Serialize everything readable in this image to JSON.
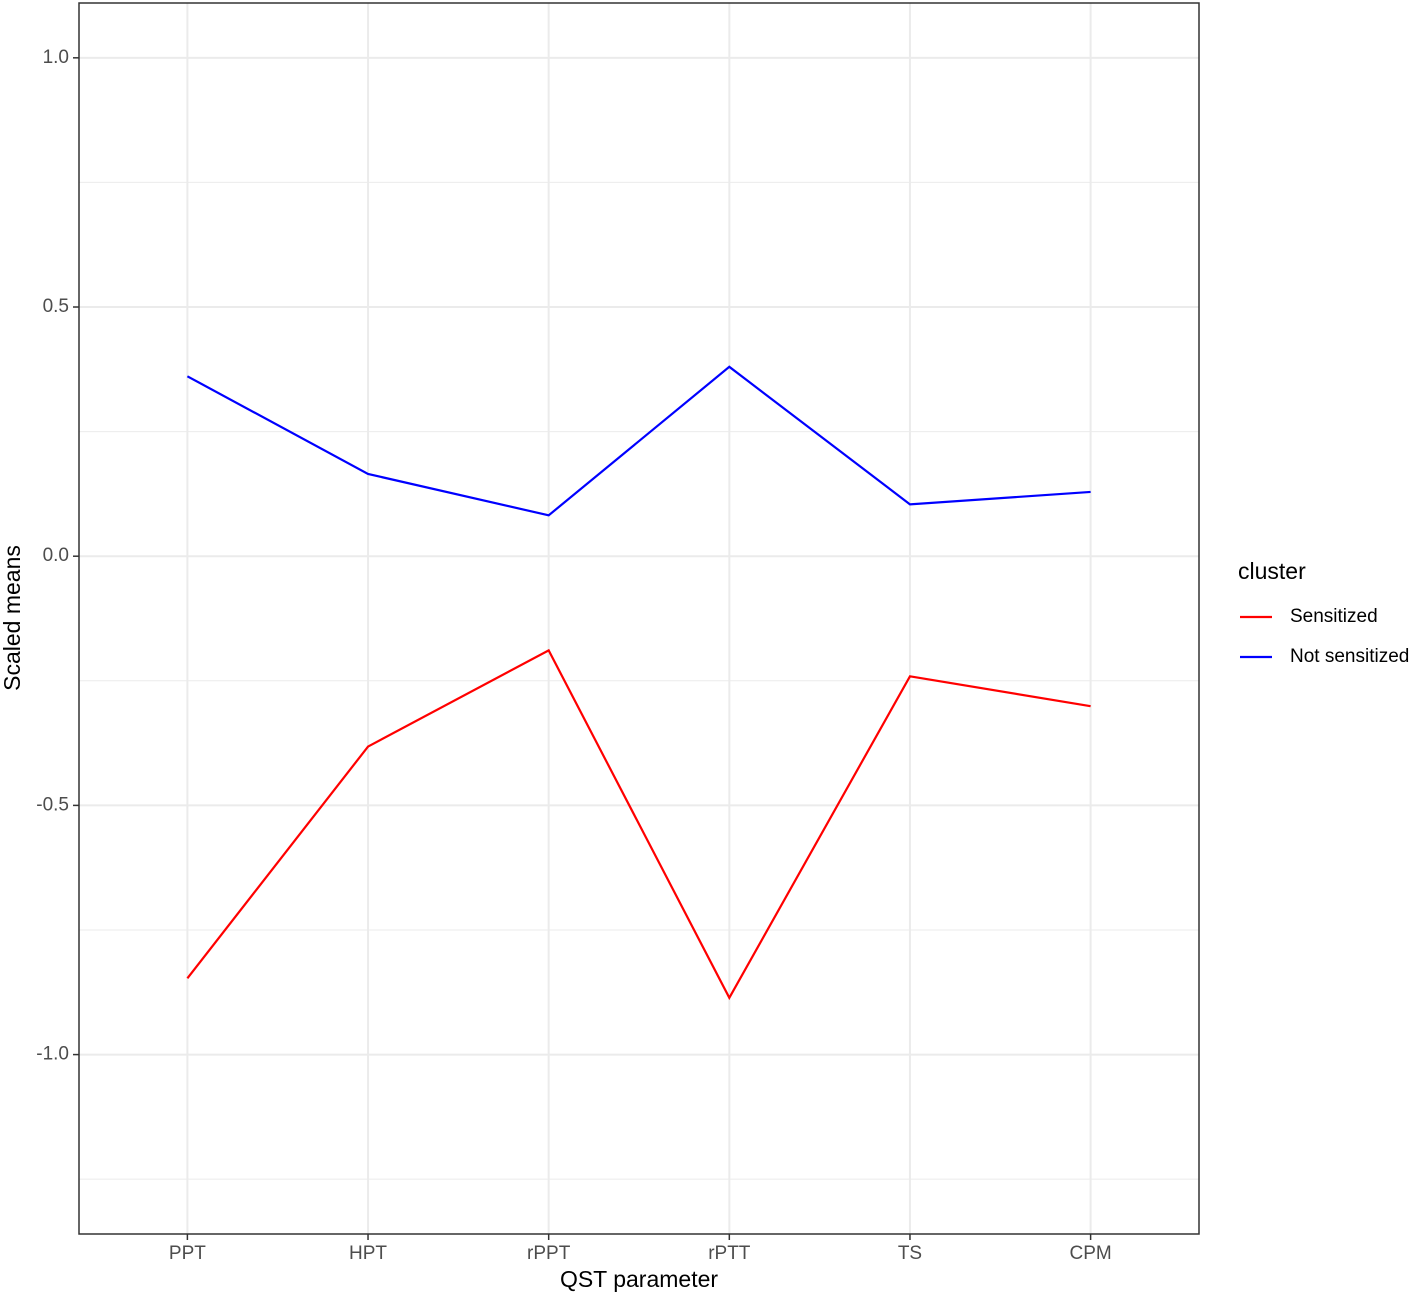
{
  "chart_data": {
    "type": "line",
    "x_label": "QST parameter",
    "y_label": "Scaled means",
    "categories": [
      "PPT",
      "HPT",
      "rPPT",
      "rPTT",
      "TS",
      "CPM"
    ],
    "series": [
      {
        "name": "Sensitized",
        "color": "#ff0000",
        "values": [
          -0.847,
          -0.382,
          -0.189,
          -0.886,
          -0.241,
          -0.301
        ]
      },
      {
        "name": "Not sensitized",
        "color": "#0000ff",
        "values": [
          0.361,
          0.165,
          0.082,
          0.38,
          0.104,
          0.129
        ]
      }
    ],
    "ylim": [
      -1.36,
      1.11
    ],
    "yticks": [
      {
        "value": -1,
        "label": "-1.0"
      },
      -0.5,
      {
        "value": 0,
        "label": "0.0"
      },
      0.5,
      {
        "value": 1,
        "label": "1.0"
      }
    ],
    "y_minor_grid": [
      -1.25,
      -0.75,
      -0.25,
      0.25,
      0.75
    ],
    "grid": true,
    "legend_title": "cluster",
    "legend_position": "right"
  }
}
